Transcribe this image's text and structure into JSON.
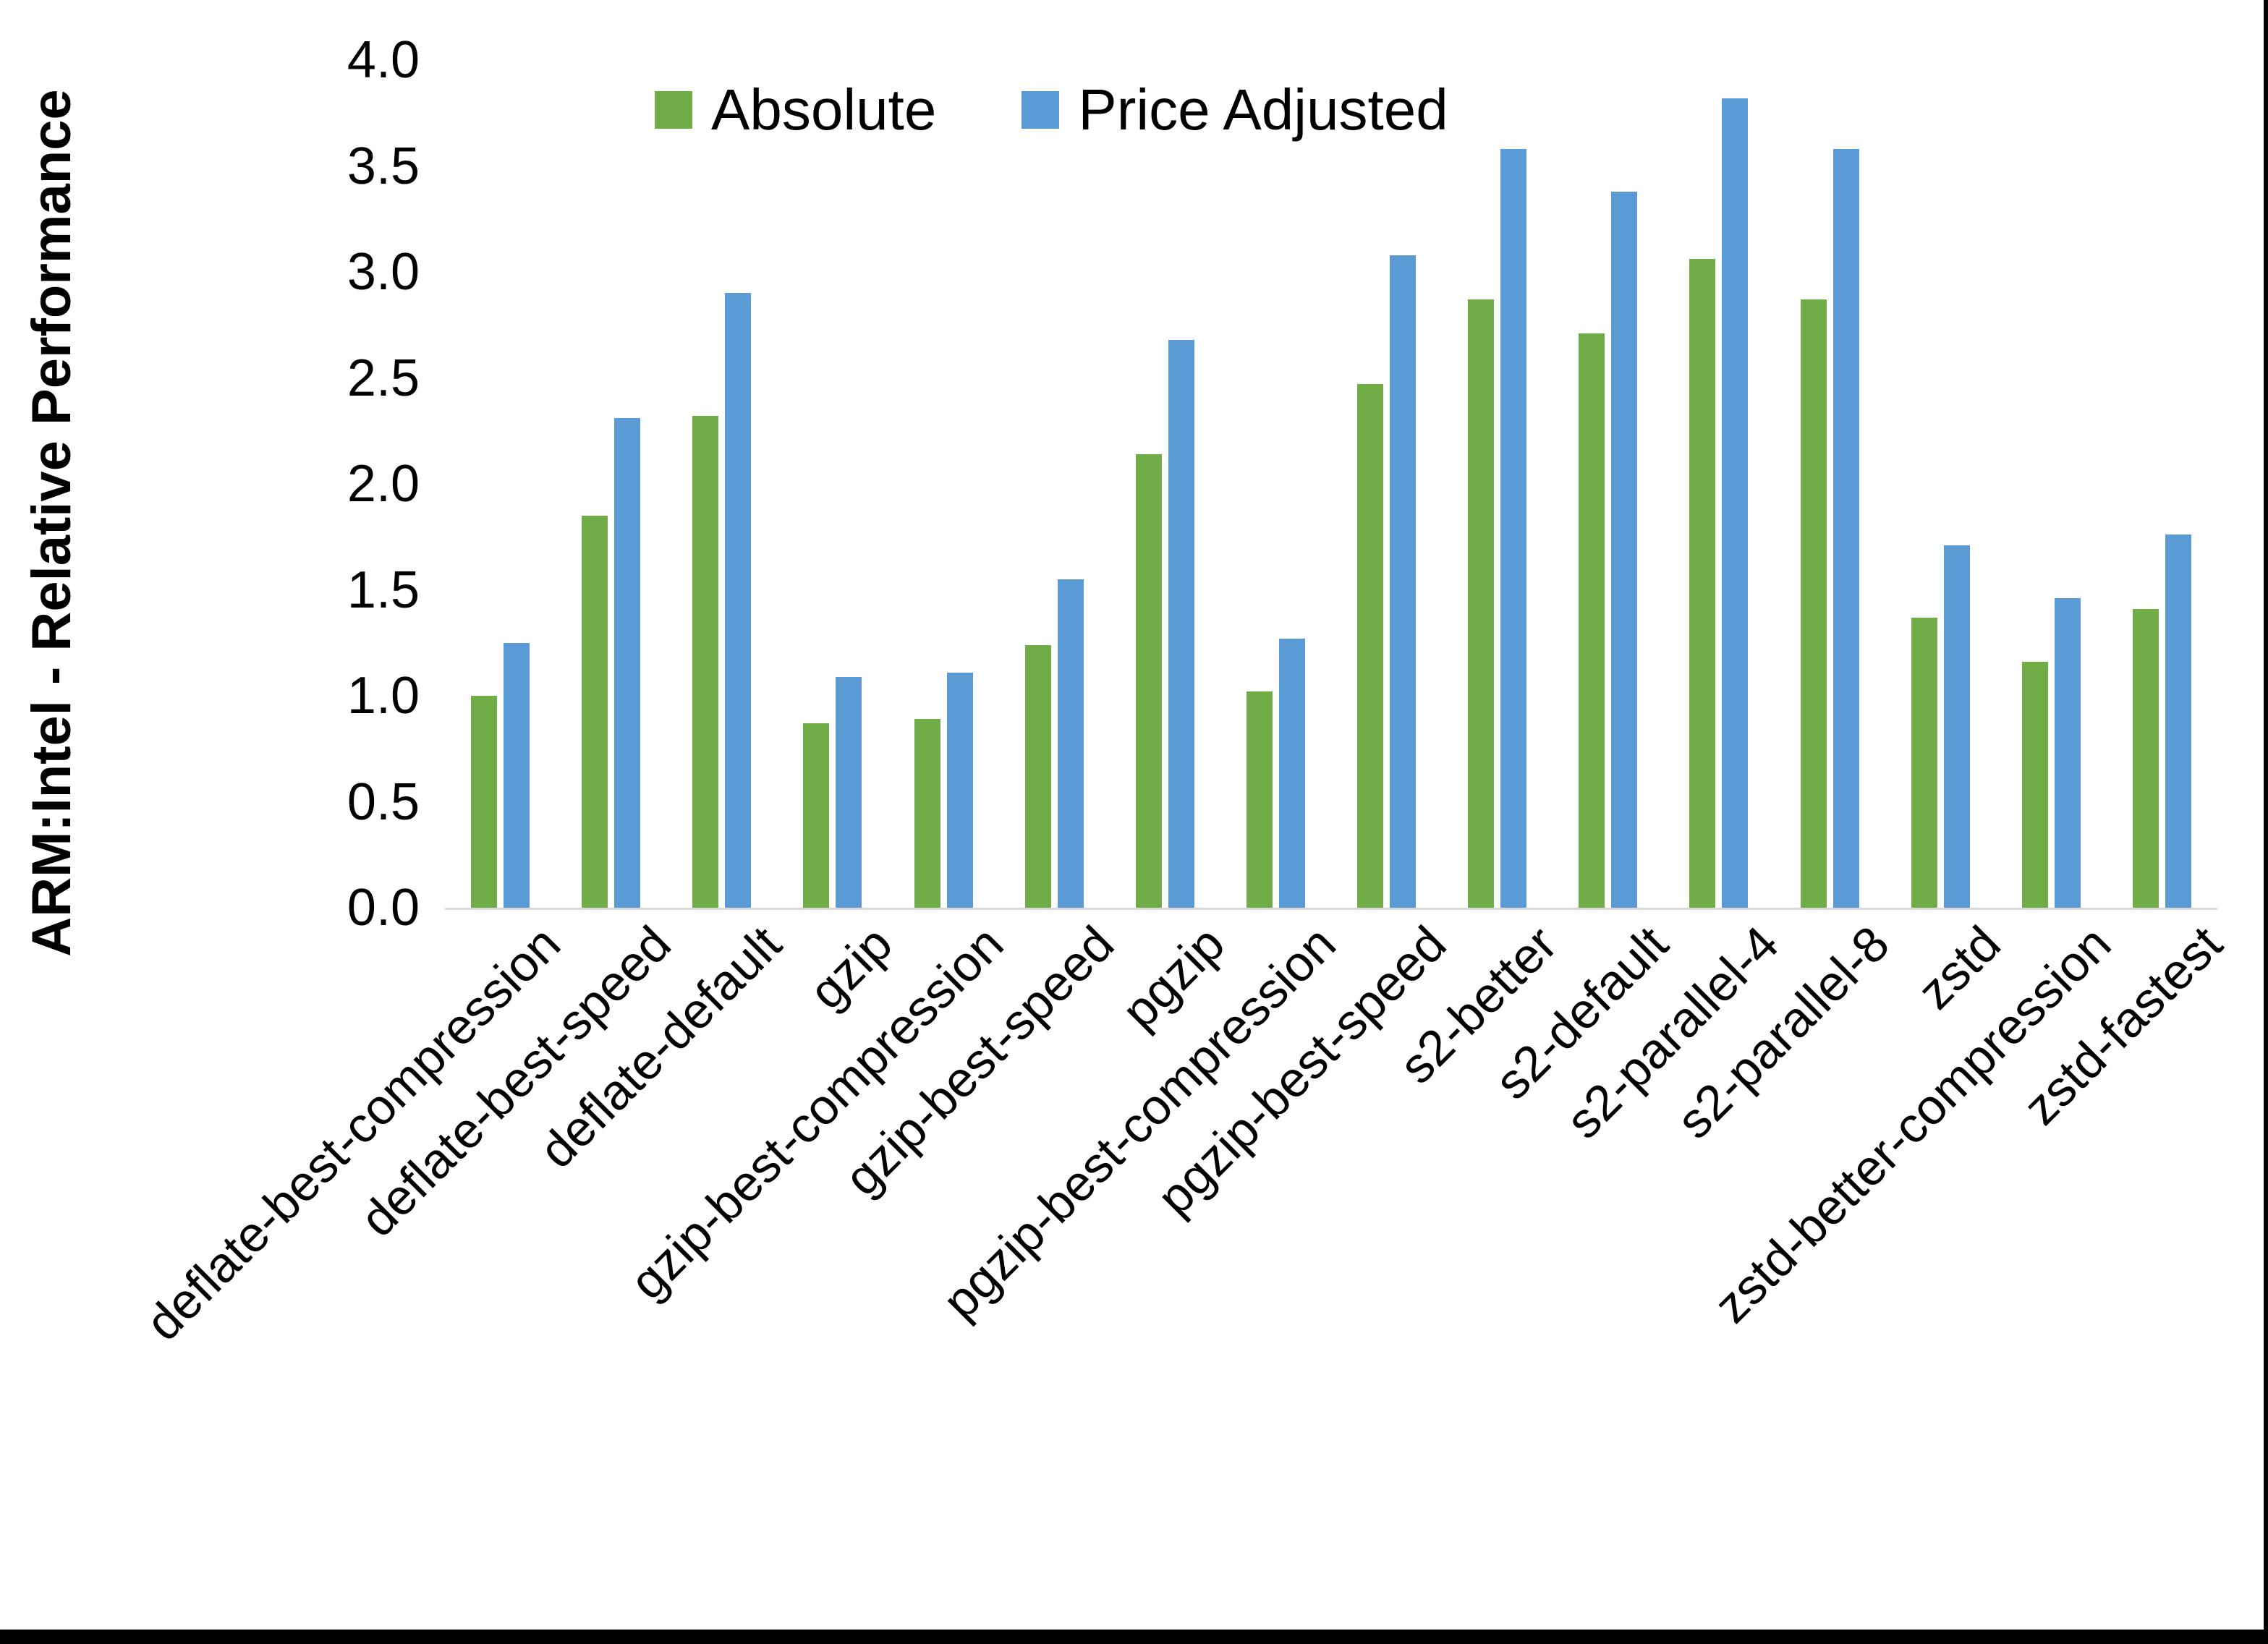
{
  "chart_data": {
    "type": "bar",
    "title": "",
    "xlabel": "",
    "ylabel": "ARM:Intel - Relative Performance",
    "ylim": [
      0,
      4
    ],
    "ytick_labels": [
      "0.0",
      "0.5",
      "1.0",
      "1.5",
      "2.0",
      "2.5",
      "3.0",
      "3.5",
      "4.0"
    ],
    "grid": "off",
    "legend_position": "top-center",
    "background_color": "#ffffff",
    "axis_line_color": "#d9d9d9",
    "categories": [
      "deflate-best-compression",
      "deflate-best-speed",
      "deflate-default",
      "gzip",
      "gzip-best-compression",
      "gzip-best-speed",
      "pgzip",
      "pgzip-best-compression",
      "pgzip-best-speed",
      "s2-better",
      "s2-default",
      "s2-parallel-4",
      "s2-parallel-8",
      "zstd",
      "zstd-better-compression",
      "zstd-fastest"
    ],
    "series": [
      {
        "name": "Absolute",
        "color": "#70AD47",
        "values": [
          1.0,
          1.85,
          2.32,
          0.87,
          0.89,
          1.24,
          2.14,
          1.02,
          2.47,
          2.87,
          2.71,
          3.06,
          2.87,
          1.37,
          1.16,
          1.41
        ]
      },
      {
        "name": "Price Adjusted",
        "color": "#5B9BD5",
        "values": [
          1.25,
          2.31,
          2.9,
          1.09,
          1.11,
          1.55,
          2.68,
          1.27,
          3.08,
          3.58,
          3.38,
          3.82,
          3.58,
          1.71,
          1.46,
          1.76
        ]
      }
    ]
  }
}
